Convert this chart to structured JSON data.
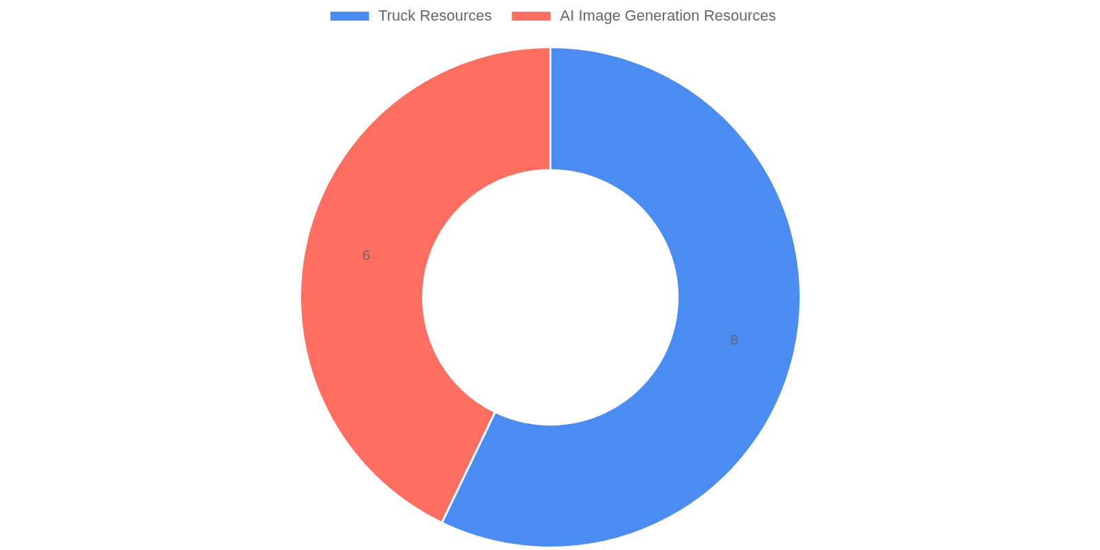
{
  "chart_data": {
    "type": "donut",
    "categories": [
      "Truck Resources",
      "AI Image Generation Resources"
    ],
    "values": [
      8,
      6
    ],
    "colors": [
      "#4a8cf2",
      "#ff6f61"
    ],
    "data_labels": true,
    "legend": "top"
  }
}
